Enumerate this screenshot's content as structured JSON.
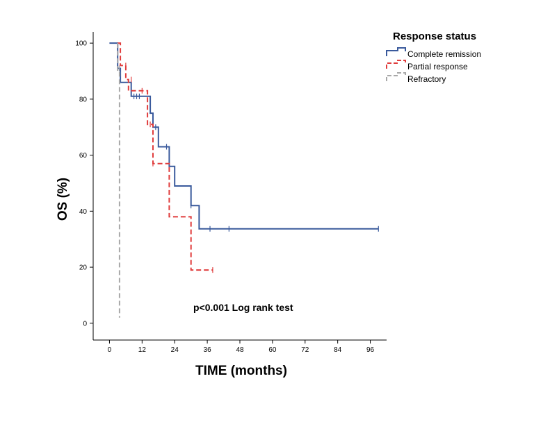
{
  "chart_data": {
    "type": "line",
    "subtype": "kaplan-meier",
    "xlabel": "TIME (months)",
    "ylabel": "OS (%)",
    "xlim": [
      -6,
      102
    ],
    "ylim": [
      -6,
      104
    ],
    "xticks": [
      0,
      12,
      24,
      36,
      48,
      60,
      72,
      84,
      96
    ],
    "yticks": [
      0,
      20,
      40,
      60,
      80,
      100
    ],
    "grid": false,
    "legend": {
      "title": "Response status",
      "position": "top-right"
    },
    "annotation": {
      "text": "p<0.001 Log rank test",
      "x": 33,
      "y": 6
    },
    "series": [
      {
        "name": "Complete remission",
        "color": "#3a5a9c",
        "dash": "solid",
        "steps": [
          [
            0,
            100
          ],
          [
            3,
            100
          ],
          [
            3,
            91
          ],
          [
            4,
            91
          ],
          [
            4,
            86
          ],
          [
            8,
            86
          ],
          [
            8,
            81
          ],
          [
            15,
            81
          ],
          [
            15,
            75
          ],
          [
            16,
            75
          ],
          [
            16,
            70
          ],
          [
            18,
            70
          ],
          [
            18,
            63
          ],
          [
            22,
            63
          ],
          [
            22,
            56
          ],
          [
            24,
            56
          ],
          [
            24,
            49
          ],
          [
            30,
            49
          ],
          [
            30,
            42
          ],
          [
            33,
            42
          ],
          [
            33,
            33.7
          ],
          [
            99,
            33.7
          ]
        ],
        "censors": [
          [
            4,
            90
          ],
          [
            9,
            81
          ],
          [
            10,
            81
          ],
          [
            11,
            81
          ],
          [
            17,
            70
          ],
          [
            21,
            63
          ],
          [
            30,
            42
          ],
          [
            37,
            33.7
          ],
          [
            44,
            33.7
          ],
          [
            99,
            33.7
          ]
        ]
      },
      {
        "name": "Partial response",
        "color": "#e03c3c",
        "dash": "7,4",
        "steps": [
          [
            3,
            100
          ],
          [
            4,
            100
          ],
          [
            4,
            92
          ],
          [
            6,
            92
          ],
          [
            6,
            87
          ],
          [
            7,
            87
          ],
          [
            7,
            83
          ],
          [
            14,
            83
          ],
          [
            14,
            71
          ],
          [
            16,
            71
          ],
          [
            16,
            57
          ],
          [
            22,
            57
          ],
          [
            22,
            38
          ],
          [
            30,
            38
          ],
          [
            30,
            19
          ],
          [
            38,
            19
          ]
        ],
        "censors": [
          [
            6,
            92
          ],
          [
            8,
            87
          ],
          [
            12,
            83
          ],
          [
            15,
            71
          ],
          [
            16,
            57
          ],
          [
            38,
            19
          ]
        ]
      },
      {
        "name": "Refractory",
        "color": "#a8a8a8",
        "dash": "7,4",
        "steps": [
          [
            3,
            100
          ],
          [
            3,
            90
          ],
          [
            3.7,
            90
          ],
          [
            3.7,
            2
          ]
        ],
        "censors": [
          [
            3.6,
            91
          ]
        ]
      }
    ]
  }
}
